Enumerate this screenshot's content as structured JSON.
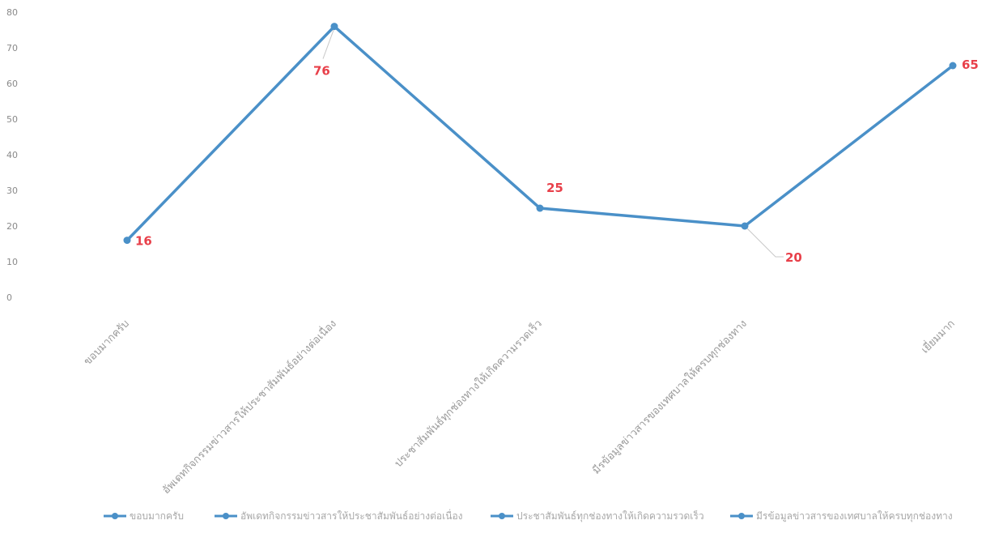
{
  "chart_data": {
    "type": "line",
    "categories": [
      "ขอบมากครับ",
      "อัพเดทกิจกรรมข่าวสารให้ประชาสัมพันธ์อย่างต่อเนื่อง",
      "ประชาสัมพันธ์ทุกช่องทางให้เกิดความรวดเร็ว",
      "มีรข้อมูลข่าวสารของเทศบาลให้ครบทุกช่องทาง",
      "เยี่ยมมาก"
    ],
    "series": [
      {
        "values": [
          16,
          76,
          25,
          20,
          65
        ],
        "data_labels": [
          "16",
          "76",
          "25",
          "20",
          "65"
        ]
      }
    ],
    "yticks": [
      "0",
      "10",
      "20",
      "30",
      "40",
      "50",
      "60",
      "70",
      "80"
    ],
    "ylim": [
      0,
      80
    ],
    "grid": false,
    "legend_position": "bottom",
    "legend": [
      "ขอบมากครับ",
      "อัพเดทกิจกรรมข่าวสารให้ประชาสัมพันธ์อย่างต่อเนื่อง",
      "ประชาสัมพันธ์ทุกช่องทางให้เกิดความรวดเร็ว",
      "มีรข้อมูลข่าวสารของเทศบาลให้ครบทุกช่องทาง"
    ],
    "colors": {
      "line": "#4a90c8",
      "label": "#e8404a"
    }
  }
}
